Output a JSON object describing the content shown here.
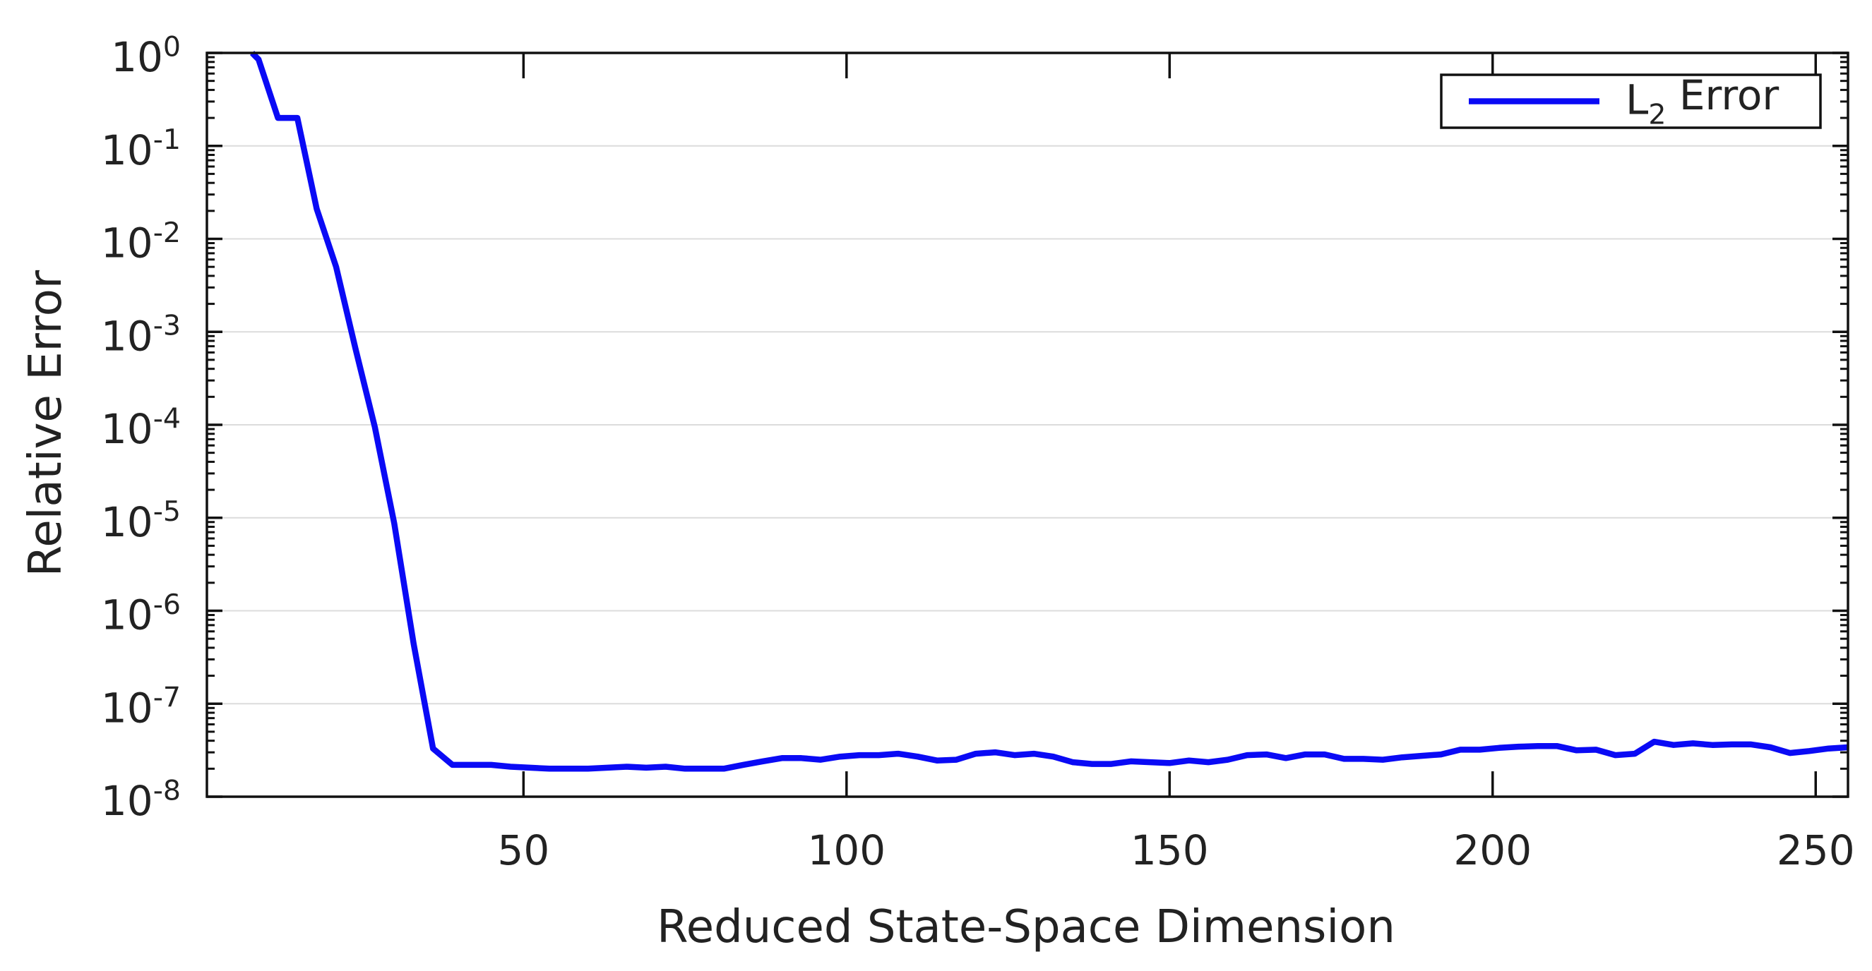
{
  "chart_data": {
    "type": "line",
    "xlabel": "Reduced State-Space Dimension",
    "ylabel": "Relative Error",
    "log_y": true,
    "grid": true,
    "legend": "upper right",
    "xlim": [
      1,
      255
    ],
    "xticks": [
      50,
      100,
      150,
      200,
      250
    ],
    "ylim": [
      1e-08,
      1
    ],
    "yticks": [
      {
        "value": 1,
        "label": "10^0"
      },
      {
        "value": 0.1,
        "label": "10^-1"
      },
      {
        "value": 0.01,
        "label": "10^-2"
      },
      {
        "value": 0.001,
        "label": "10^-3"
      },
      {
        "value": 0.0001,
        "label": "10^-4"
      },
      {
        "value": 1e-05,
        "label": "10^-5"
      },
      {
        "value": 1e-06,
        "label": "10^-6"
      },
      {
        "value": 1e-07,
        "label": "10^-7"
      },
      {
        "value": 1e-08,
        "label": "10^-8"
      }
    ],
    "x": [
      8,
      9,
      12,
      15,
      18,
      21,
      24,
      27,
      30,
      33,
      36,
      39,
      42,
      45,
      48,
      51,
      54,
      57,
      60,
      63,
      66,
      69,
      72,
      75,
      78,
      81,
      84,
      87,
      90,
      93,
      96,
      99,
      102,
      105,
      108,
      111,
      114,
      117,
      120,
      123,
      126,
      129,
      132,
      135,
      138,
      141,
      144,
      147,
      150,
      153,
      156,
      159,
      162,
      165,
      168,
      171,
      174,
      177,
      180,
      183,
      186,
      189,
      192,
      195,
      198,
      201,
      204,
      207,
      210,
      213,
      216,
      219,
      222,
      225,
      228,
      231,
      234,
      237,
      240,
      243,
      246,
      249,
      252,
      255
    ],
    "series": [
      {
        "name": "L_2 Error",
        "color": "#0a0af5",
        "values": [
          1.0,
          0.85,
          0.2,
          0.2,
          0.021,
          0.005,
          0.00066,
          9.4e-05,
          8.7e-06,
          4.4e-07,
          3.3e-08,
          2.2e-08,
          2.2e-08,
          2.2e-08,
          2.1e-08,
          2.05e-08,
          2e-08,
          2e-08,
          2e-08,
          2.05e-08,
          2.1e-08,
          2.05e-08,
          2.1e-08,
          2e-08,
          2e-08,
          2e-08,
          2.2e-08,
          2.4e-08,
          2.6e-08,
          2.6e-08,
          2.5e-08,
          2.7e-08,
          2.8e-08,
          2.8e-08,
          2.9e-08,
          2.7e-08,
          2.45e-08,
          2.5e-08,
          2.9e-08,
          3e-08,
          2.8e-08,
          2.9e-08,
          2.7e-08,
          2.35e-08,
          2.25e-08,
          2.25e-08,
          2.4e-08,
          2.35e-08,
          2.3e-08,
          2.45e-08,
          2.35e-08,
          2.5e-08,
          2.8e-08,
          2.85e-08,
          2.6e-08,
          2.85e-08,
          2.85e-08,
          2.55e-08,
          2.55e-08,
          2.5e-08,
          2.65e-08,
          2.75e-08,
          2.85e-08,
          3.2e-08,
          3.2e-08,
          3.35e-08,
          3.45e-08,
          3.5e-08,
          3.5e-08,
          3.15e-08,
          3.2e-08,
          2.8e-08,
          2.9e-08,
          3.9e-08,
          3.6e-08,
          3.75e-08,
          3.6e-08,
          3.65e-08,
          3.65e-08,
          3.4e-08,
          2.95e-08,
          3.1e-08,
          3.3e-08,
          3.4e-08
        ]
      }
    ]
  }
}
